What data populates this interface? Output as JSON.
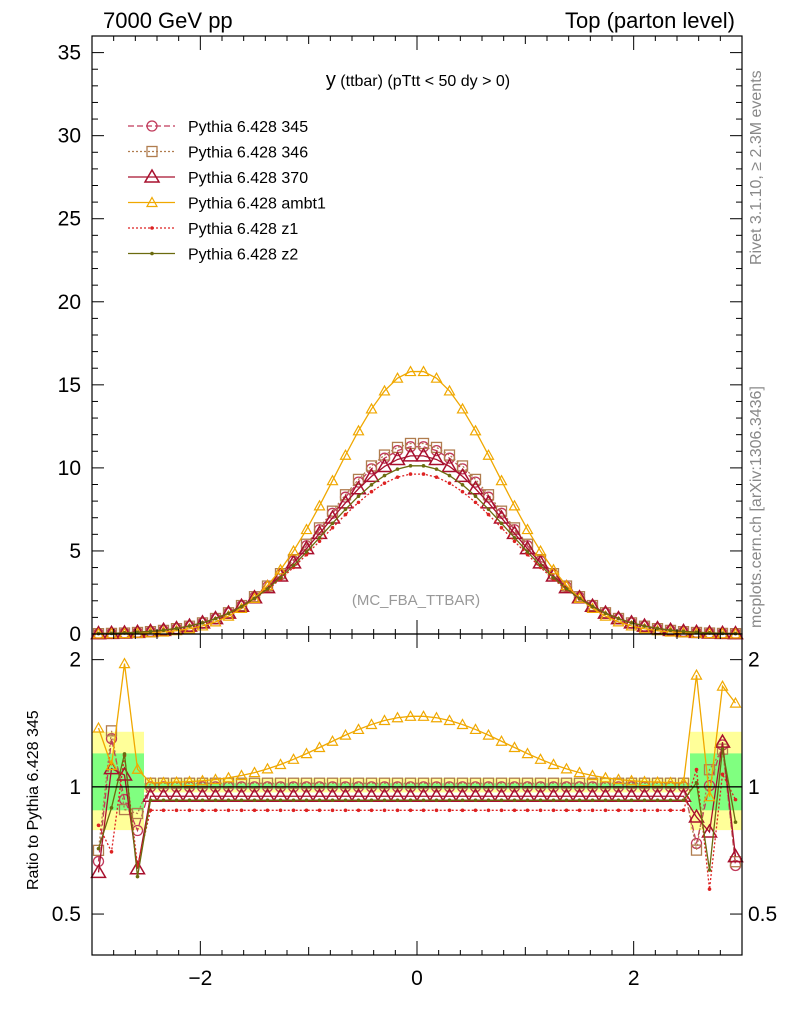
{
  "header": {
    "left": "7000 GeV pp",
    "right": "Top (parton level)"
  },
  "plot_title": {
    "main": "y",
    "sub": " (ttbar) (pTtt < 50 dy > 0)"
  },
  "side_labels": {
    "rivet": "Rivet 3.1.10, ≥ 2.3M events",
    "mcplots": "mcplots.cern.ch [arXiv:1306.3436]"
  },
  "watermark": "(MC_FBA_TTBAR)",
  "ratio_ylabel": "Ratio to Pythia 6.428 345",
  "colors": {
    "p345": "#c0395a",
    "p346": "#b07c4e",
    "p370": "#a8102e",
    "ambt1": "#f0a800",
    "z1": "#dd2222",
    "z2": "#6b6b0f",
    "band_yellow": "#ffff99",
    "band_green": "#80ff80"
  },
  "chart_data": [
    {
      "type": "line",
      "panel": "main",
      "xlim": [
        -3.0,
        3.0
      ],
      "ylim": [
        0,
        36
      ],
      "yticks": [
        0,
        5,
        10,
        15,
        20,
        25,
        30,
        35
      ],
      "legend_placement": "top-left",
      "series": [
        {
          "name": "Pythia 6.428 345",
          "key": "p345",
          "marker": "open-circle",
          "dash": "dashed",
          "peak": 11.3,
          "sigma": 0.83
        },
        {
          "name": "Pythia 6.428 346",
          "key": "p346",
          "marker": "open-square",
          "dash": "dotted",
          "peak": 11.5,
          "sigma": 0.83
        },
        {
          "name": "Pythia 6.428 370",
          "key": "p370",
          "marker": "open-triangle",
          "dash": "solid",
          "peak": 10.75,
          "sigma": 0.84
        },
        {
          "name": "Pythia 6.428 ambt1",
          "key": "ambt1",
          "marker": "open-triangle-small",
          "dash": "solid",
          "peak": 15.85,
          "sigma": 0.75
        },
        {
          "name": "Pythia 6.428 z1",
          "key": "z1",
          "marker": "dot",
          "dash": "dotted",
          "peak": 9.65,
          "sigma": 0.86
        },
        {
          "name": "Pythia 6.428 z2",
          "key": "z2",
          "marker": "dot",
          "dash": "solid",
          "peak": 10.15,
          "sigma": 0.85
        }
      ]
    },
    {
      "type": "line",
      "panel": "ratio",
      "xlim": [
        -3.0,
        3.0
      ],
      "ylim": [
        0.4,
        2.3
      ],
      "yscale": "log",
      "xticks": [
        -2,
        0,
        2
      ],
      "yticks": [
        0.5,
        1,
        2
      ],
      "series_ratio_to": "Pythia 6.428 345",
      "ratios": {
        "p345": 1.0,
        "p346": 1.02,
        "p370": 0.95,
        "ambt1": 1.45,
        "z1": 0.88,
        "z2": 0.93
      }
    }
  ]
}
